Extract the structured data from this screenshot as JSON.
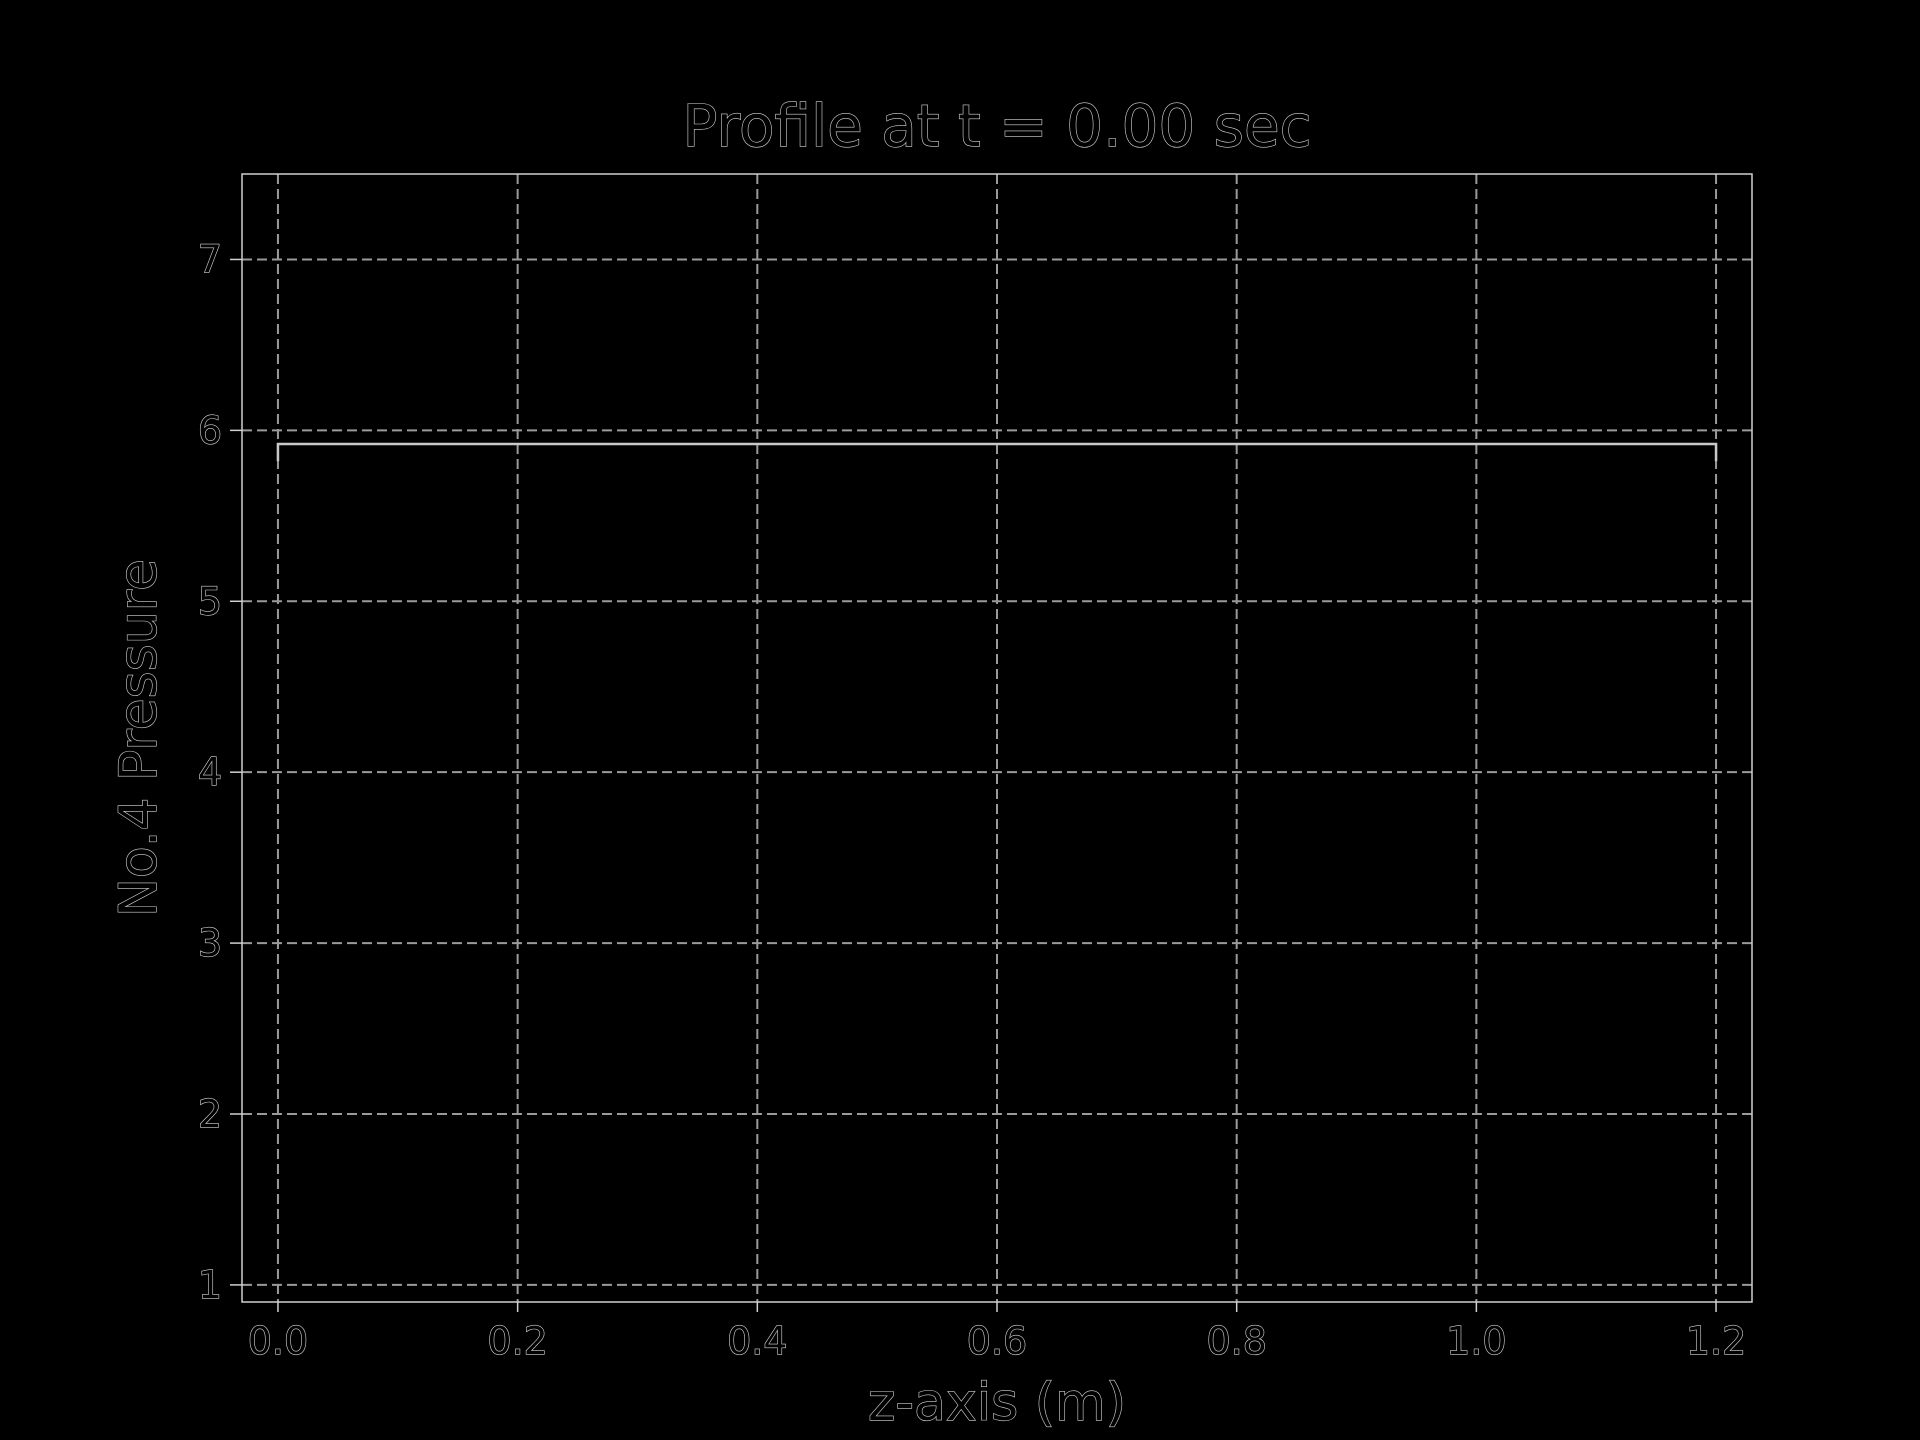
{
  "chart_data": {
    "type": "line",
    "title": "Profile at t = 0.00 sec",
    "xlabel": "z-axis (m)",
    "ylabel": "No.4 Pressure",
    "xlim": [
      -0.03,
      1.23
    ],
    "ylim": [
      0.9,
      7.5
    ],
    "x_ticks": [
      0.0,
      0.2,
      0.4,
      0.6,
      0.8,
      1.0,
      1.2
    ],
    "x_tick_labels": [
      "0.0",
      "0.2",
      "0.4",
      "0.6",
      "0.8",
      "1.0",
      "1.2"
    ],
    "y_ticks": [
      1,
      2,
      3,
      4,
      5,
      6,
      7
    ],
    "y_tick_labels": [
      "1",
      "2",
      "3",
      "4",
      "5",
      "6",
      "7"
    ],
    "grid": true,
    "grid_style": "dashed",
    "series": [
      {
        "x": [
          0.0,
          0.0,
          1.2,
          1.2
        ],
        "y": [
          5.82,
          5.92,
          5.92,
          5.82
        ]
      }
    ],
    "colors": {
      "background": "#000000",
      "axes": "#d0d0d0",
      "grid": "#9a9a9a",
      "line": "#c8c8c8",
      "text": "#d4d4d4"
    }
  }
}
